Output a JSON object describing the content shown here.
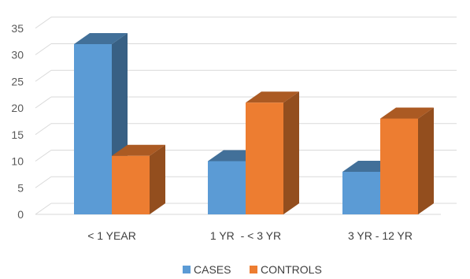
{
  "chart_data": {
    "type": "bar",
    "categories": [
      "< 1 YEAR",
      "1 YR  - < 3 YR",
      "3 YR - 12 YR"
    ],
    "series": [
      {
        "name": "CASES",
        "values": [
          32,
          10,
          8
        ],
        "color": "#5B9BD5"
      },
      {
        "name": "CONTROLS",
        "values": [
          11,
          21,
          18
        ],
        "color": "#ED7D31"
      }
    ],
    "title": "",
    "xlabel": "",
    "ylabel": "",
    "ylim": [
      0,
      35
    ],
    "yticks": [
      "0",
      "5",
      "10",
      "15",
      "20",
      "25",
      "30",
      "35"
    ],
    "grid": true,
    "three_d": true,
    "legend_position": "bottom"
  }
}
